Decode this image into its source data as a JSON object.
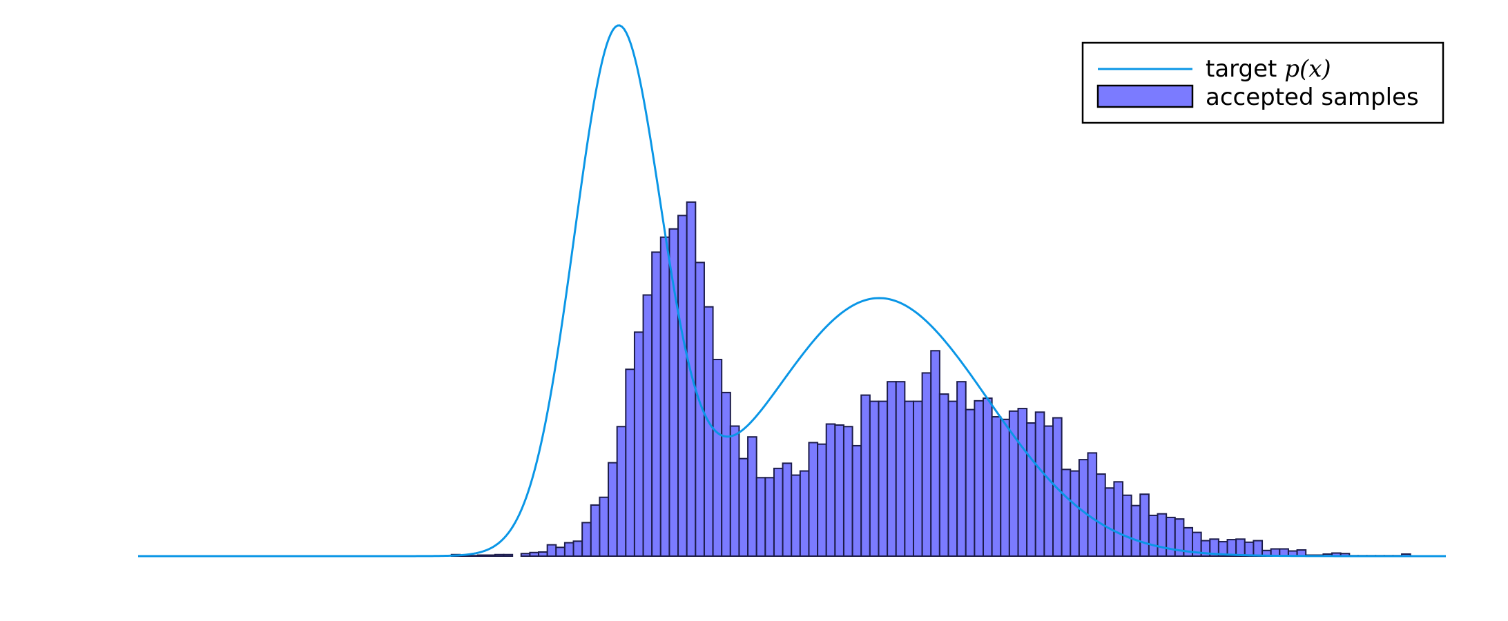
{
  "chart_data": {
    "type": "bar",
    "title": "",
    "xlabel": "",
    "ylabel": "",
    "xlim": [
      -6,
      6
    ],
    "ylim": [
      0,
      1
    ],
    "grid": false,
    "axes_visible": false,
    "legend_position": "top-right",
    "legend": {
      "target_label_prefix": "target ",
      "target_label_math": "p(x)",
      "samples_label": "accepted samples"
    },
    "series": [
      {
        "name": "target p(x)",
        "kind": "line",
        "color": "#0a96e6",
        "components": [
          {
            "mean": -1.6,
            "sd": 0.4,
            "peak": 1.0
          },
          {
            "mean": 0.8,
            "sd": 1.0,
            "peak": 0.5
          }
        ]
      },
      {
        "name": "accepted samples",
        "kind": "histogram",
        "fill_color": "#7b7bff",
        "edge_color": "#1c1c4a",
        "bin_start": -3.125,
        "bin_width": 0.08,
        "counts": [
          0.003,
          0.001,
          0.001,
          0.002,
          0.002,
          0.003,
          0.003,
          0,
          0.005,
          0.007,
          0.008,
          0.022,
          0.017,
          0.026,
          0.029,
          0.065,
          0.099,
          0.114,
          0.181,
          0.251,
          0.362,
          0.434,
          0.506,
          0.589,
          0.618,
          0.634,
          0.66,
          0.686,
          0.569,
          0.483,
          0.381,
          0.317,
          0.252,
          0.189,
          0.231,
          0.152,
          0.152,
          0.17,
          0.18,
          0.157,
          0.165,
          0.22,
          0.217,
          0.256,
          0.254,
          0.251,
          0.214,
          0.312,
          0.3,
          0.3,
          0.338,
          0.338,
          0.3,
          0.3,
          0.355,
          0.398,
          0.314,
          0.3,
          0.338,
          0.284,
          0.301,
          0.306,
          0.27,
          0.265,
          0.281,
          0.286,
          0.258,
          0.279,
          0.252,
          0.268,
          0.168,
          0.165,
          0.187,
          0.2,
          0.159,
          0.132,
          0.144,
          0.118,
          0.098,
          0.12,
          0.079,
          0.082,
          0.075,
          0.072,
          0.055,
          0.046,
          0.03,
          0.033,
          0.028,
          0.032,
          0.033,
          0.027,
          0.03,
          0.011,
          0.014,
          0.014,
          0.01,
          0.012,
          0.002,
          0.002,
          0.004,
          0.006,
          0.005,
          0.001,
          0.001,
          0.001,
          0.001,
          0.001,
          0.001,
          0.004
        ]
      }
    ]
  }
}
